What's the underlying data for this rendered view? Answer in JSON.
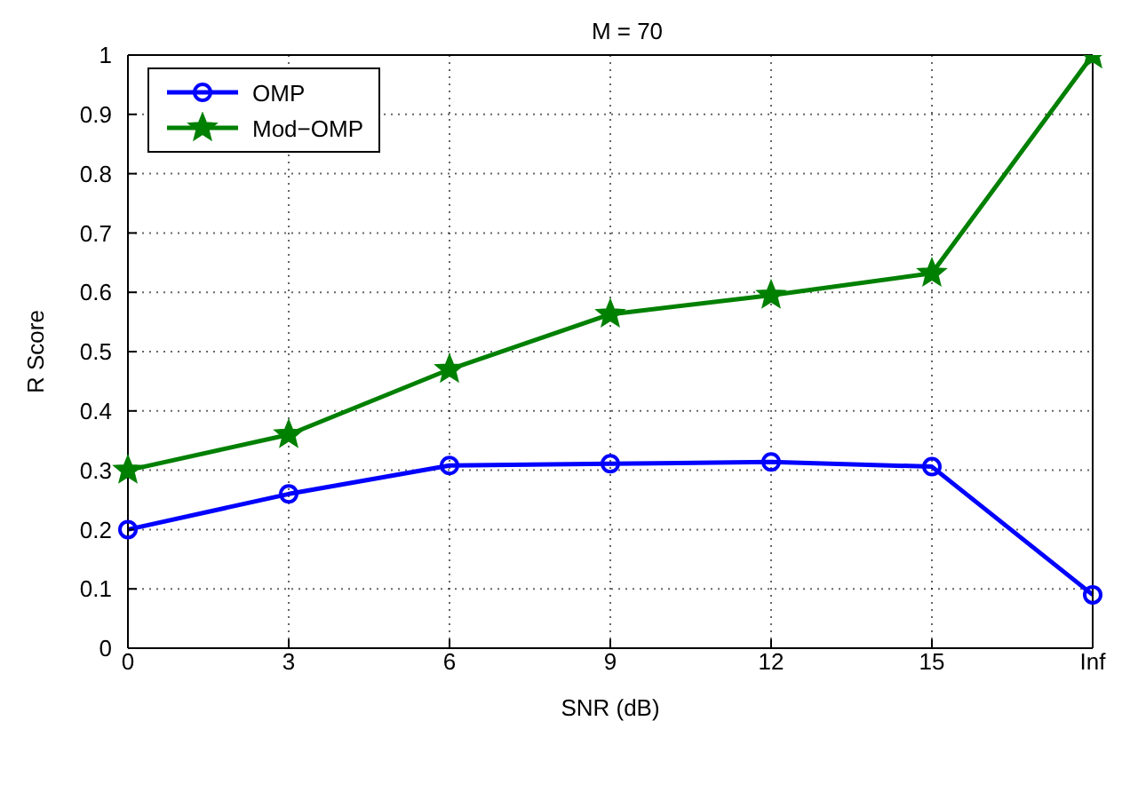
{
  "chart_data": {
    "type": "line",
    "title": "M = 70",
    "xlabel": "SNR (dB)",
    "ylabel": "R Score",
    "categories": [
      "0",
      "3",
      "6",
      "9",
      "12",
      "15",
      "Inf"
    ],
    "series": [
      {
        "name": "OMP",
        "color": "#0000ff",
        "marker": "circle",
        "values": [
          0.2,
          0.26,
          0.308,
          0.311,
          0.314,
          0.306,
          0.09
        ]
      },
      {
        "name": "Mod−OMP",
        "color": "#008000",
        "marker": "star",
        "values": [
          0.3,
          0.36,
          0.47,
          0.563,
          0.595,
          0.632,
          1.0
        ]
      }
    ],
    "ylim": [
      0,
      1
    ],
    "yticks": [
      0,
      0.1,
      0.2,
      0.3,
      0.4,
      0.5,
      0.6,
      0.7,
      0.8,
      0.9,
      1
    ],
    "grid": true,
    "legend": "top left",
    "line_style": "solid"
  }
}
